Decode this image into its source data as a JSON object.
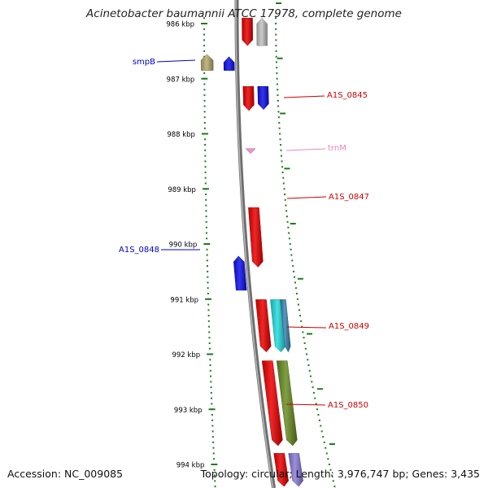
{
  "title": "Acinetobacter baumannii ATCC 17978, complete genome",
  "accession": "Accession: NC_009085",
  "topology": "Topology: circular; Length: 3,976,747 bp; Genes: 3,435",
  "scale": {
    "unit": "kbp",
    "ticks": [
      {
        "label": "986 kbp",
        "value": 986
      },
      {
        "label": "987 kbp",
        "value": 987
      },
      {
        "label": "988 kbp",
        "value": 988
      },
      {
        "label": "989 kbp",
        "value": 989
      },
      {
        "label": "990 kbp",
        "value": 990
      },
      {
        "label": "991 kbp",
        "value": 991
      },
      {
        "label": "992 kbp",
        "value": 992
      },
      {
        "label": "993 kbp",
        "value": 993
      },
      {
        "label": "994 kbp",
        "value": 994
      }
    ]
  },
  "colors": {
    "tick": "#1e7a1e",
    "backbone": "#8c8c8c",
    "cds_red": "#ee0000",
    "cds_blue": "#1010ee",
    "cds_gray": "#c4c4c4",
    "cds_olive": "#b8ac70",
    "cds_cyan": "#22dddd",
    "cds_teal": "#3a86b0",
    "cds_green": "#6b8e23",
    "cds_purple": "#8a7ed8",
    "trna_pink": "#f090c8",
    "label_red": "#cc0000",
    "label_blue": "#0000cc",
    "label_pink": "#ee88bb"
  },
  "features": [
    {
      "label": "",
      "color": "cds_red",
      "start": 985.9,
      "end": 986.4,
      "track": "inner",
      "strand": "-"
    },
    {
      "label": "",
      "color": "cds_gray",
      "start": 985.9,
      "end": 986.4,
      "track": "outer",
      "strand": "+"
    },
    {
      "label": "smpB",
      "color": "cds_olive",
      "start": 986.56,
      "end": 986.85,
      "track": "far-left",
      "strand": "+"
    },
    {
      "label": "",
      "color": "cds_blue",
      "start": 986.6,
      "end": 986.85,
      "track": "left",
      "strand": "+"
    },
    {
      "label": "A1S_0845",
      "color": "cds_red",
      "start": 987.14,
      "end": 987.58,
      "track": "inner",
      "strand": "-"
    },
    {
      "label": "",
      "color": "cds_blue",
      "start": 987.14,
      "end": 987.56,
      "track": "outer",
      "strand": "-"
    },
    {
      "label": "trnM",
      "color": "trna_pink",
      "start": 988.26,
      "end": 988.34,
      "track": "inner",
      "strand": "-"
    },
    {
      "label": "A1S_0847",
      "color": "cds_red",
      "start": 989.34,
      "end": 990.42,
      "track": "inner",
      "strand": "-"
    },
    {
      "label": "A1S_0848",
      "color": "cds_blue",
      "start": 990.22,
      "end": 990.84,
      "track": "left",
      "strand": "+"
    },
    {
      "label": "A1S_0849",
      "color": "cds_red",
      "start": 991.01,
      "end": 991.96,
      "track": "inner",
      "strand": "-"
    },
    {
      "label": "",
      "color": "cds_cyan",
      "start": 991.01,
      "end": 991.96,
      "track": "outer",
      "strand": "-"
    },
    {
      "label": "",
      "color": "cds_teal",
      "start": 991.01,
      "end": 991.96,
      "track": "outer2",
      "strand": "-"
    },
    {
      "label": "A1S_0850",
      "color": "cds_red",
      "start": 992.12,
      "end": 993.66,
      "track": "inner",
      "strand": "-"
    },
    {
      "label": "",
      "color": "cds_green",
      "start": 992.12,
      "end": 993.66,
      "track": "outer",
      "strand": "-"
    },
    {
      "label": "",
      "color": "cds_red",
      "start": 993.8,
      "end": 994.4,
      "track": "inner",
      "strand": "-"
    },
    {
      "label": "",
      "color": "cds_purple",
      "start": 993.8,
      "end": 994.4,
      "track": "outer",
      "strand": "-"
    }
  ]
}
